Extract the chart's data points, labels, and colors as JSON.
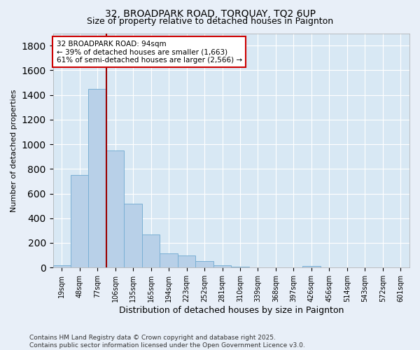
{
  "title1": "32, BROADPARK ROAD, TORQUAY, TQ2 6UP",
  "title2": "Size of property relative to detached houses in Paignton",
  "xlabel": "Distribution of detached houses by size in Paignton",
  "ylabel": "Number of detached properties",
  "categories": [
    "19sqm",
    "48sqm",
    "77sqm",
    "106sqm",
    "135sqm",
    "165sqm",
    "194sqm",
    "223sqm",
    "252sqm",
    "281sqm",
    "310sqm",
    "339sqm",
    "368sqm",
    "397sqm",
    "426sqm",
    "456sqm",
    "514sqm",
    "543sqm",
    "572sqm",
    "601sqm"
  ],
  "values": [
    20,
    750,
    1450,
    950,
    520,
    270,
    115,
    95,
    50,
    20,
    5,
    3,
    2,
    2,
    15,
    2,
    2,
    1,
    1,
    1
  ],
  "bar_color": "#b8d0e8",
  "bar_edgecolor": "#7aafd4",
  "vline_x": 2.5,
  "vline_color": "#990000",
  "annotation_text": "32 BROADPARK ROAD: 94sqm\n← 39% of detached houses are smaller (1,663)\n61% of semi-detached houses are larger (2,566) →",
  "annotation_box_edgecolor": "#cc0000",
  "annotation_box_facecolor": "#ffffff",
  "ylim": [
    0,
    1900
  ],
  "yticks": [
    0,
    200,
    400,
    600,
    800,
    1000,
    1200,
    1400,
    1600,
    1800
  ],
  "footer": "Contains HM Land Registry data © Crown copyright and database right 2025.\nContains public sector information licensed under the Open Government Licence v3.0.",
  "bg_color": "#e8eff8",
  "plot_bg_color": "#d8e8f4",
  "figsize": [
    6.0,
    5.0
  ],
  "dpi": 100
}
